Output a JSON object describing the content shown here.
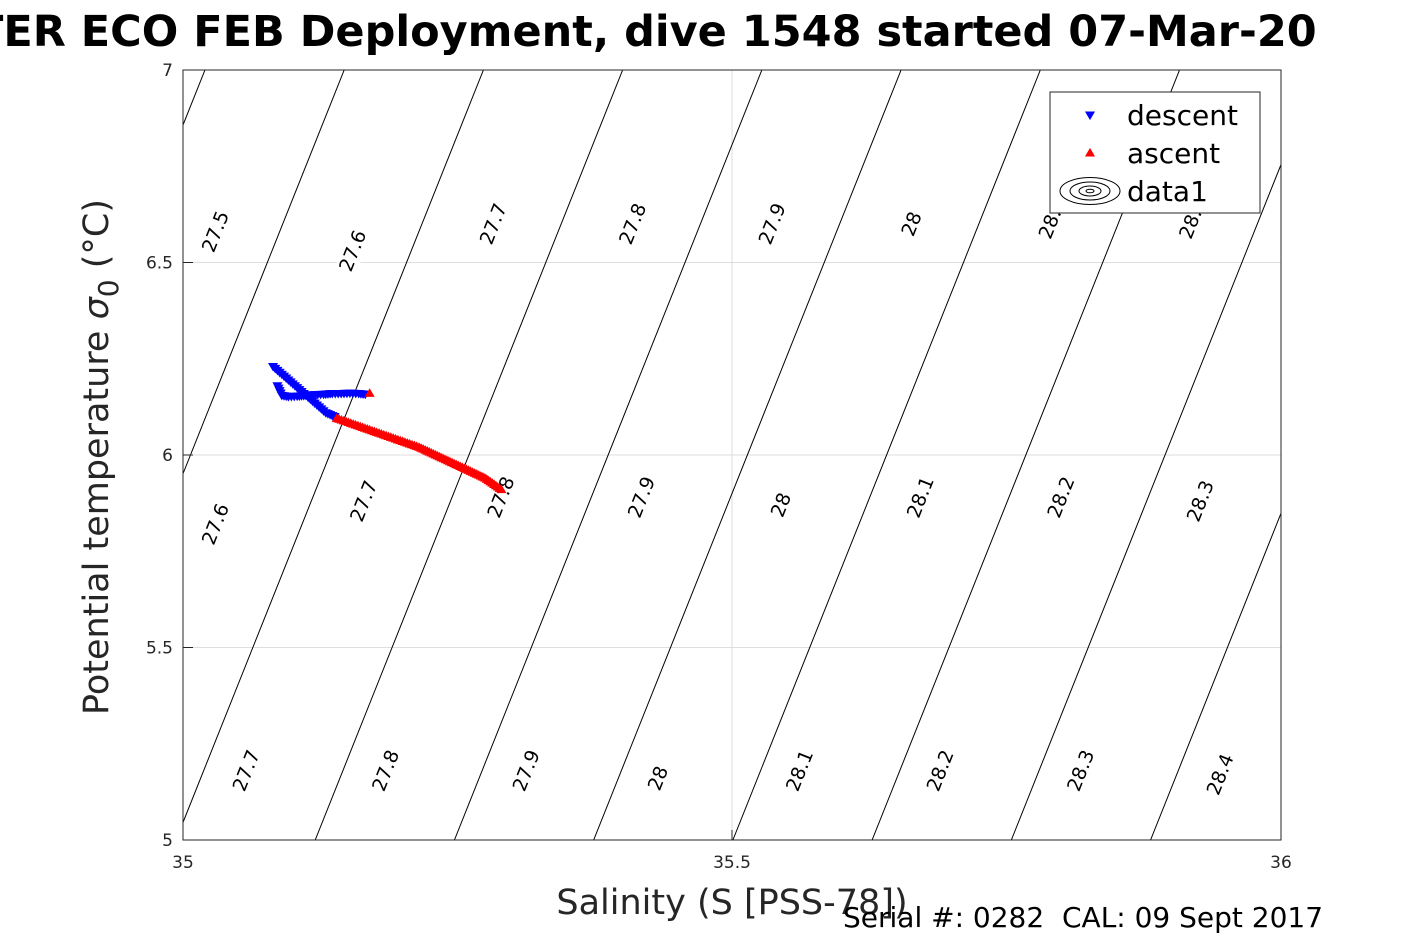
{
  "figure": {
    "title": "TER ECO FEB Deployment, dive 1548 started 07-Mar-20",
    "footer": "Serial #: 0282  CAL: 09 Sept 2017"
  },
  "colors": {
    "descent": "#0000ff",
    "ascent": "#ff0000",
    "contour": "#000000",
    "grid": "#dedede",
    "axis": "#262626"
  },
  "chart_data": {
    "type": "scatter",
    "title": "TER ECO FEB Deployment, dive 1548 started 07-Mar-20",
    "xlabel": "Salinity (S [PSS-78])",
    "ylabel": "Potential temperature σ 0 (°C)",
    "xlim": [
      35,
      36
    ],
    "ylim": [
      5,
      7
    ],
    "xticks": [
      "35",
      "35.5",
      "36"
    ],
    "yticks": [
      "5",
      "5.5",
      "6",
      "6.5",
      "7"
    ],
    "grid": true,
    "legend_position": "top-right",
    "legend": [
      "descent",
      "ascent",
      "data1"
    ],
    "series": [
      {
        "name": "descent",
        "marker": "triangle-down",
        "x": [
          35.082,
          35.086,
          35.09,
          35.094,
          35.098,
          35.102,
          35.106,
          35.11,
          35.114,
          35.118,
          35.122,
          35.126,
          35.13,
          35.134,
          35.138,
          35.086,
          35.09,
          35.096,
          35.104,
          35.112,
          35.12,
          35.128,
          35.136,
          35.144,
          35.152,
          35.16,
          35.166
        ],
        "y": [
          6.23,
          6.22,
          6.21,
          6.2,
          6.19,
          6.18,
          6.17,
          6.16,
          6.15,
          6.14,
          6.13,
          6.12,
          6.11,
          6.105,
          6.1,
          6.18,
          6.155,
          6.152,
          6.153,
          6.155,
          6.157,
          6.158,
          6.16,
          6.16,
          6.161,
          6.16,
          6.158
        ]
      },
      {
        "name": "ascent",
        "marker": "triangle-up",
        "x": [
          35.14,
          35.155,
          35.17,
          35.185,
          35.2,
          35.215,
          35.23,
          35.245,
          35.26,
          35.275,
          35.29,
          35.17
        ],
        "y": [
          6.095,
          6.08,
          6.065,
          6.05,
          6.035,
          6.02,
          6.0,
          5.98,
          5.96,
          5.94,
          5.91,
          6.16
        ]
      }
    ],
    "contours": {
      "name": "data1",
      "levels": [
        27.5,
        27.6,
        27.7,
        27.8,
        27.9,
        28.0,
        28.1,
        28.2,
        28.3,
        28.4
      ],
      "labels": [
        {
          "text": "27.5",
          "s": 35.03,
          "t": 6.58
        },
        {
          "text": "27.6",
          "s": 35.155,
          "t": 6.53
        },
        {
          "text": "27.7",
          "s": 35.283,
          "t": 6.6
        },
        {
          "text": "27.8",
          "s": 35.41,
          "t": 6.6
        },
        {
          "text": "27.9",
          "s": 35.537,
          "t": 6.6
        },
        {
          "text": "28",
          "s": 35.664,
          "t": 6.6
        },
        {
          "text": "28.",
          "s": 35.79,
          "t": 6.6
        },
        {
          "text": "28.",
          "s": 35.918,
          "t": 6.6
        },
        {
          "text": "27.6",
          "s": 35.03,
          "t": 5.82
        },
        {
          "text": "27.7",
          "s": 35.165,
          "t": 5.88
        },
        {
          "text": "27.8",
          "s": 35.29,
          "t": 5.89
        },
        {
          "text": "27.9",
          "s": 35.418,
          "t": 5.89
        },
        {
          "text": "28",
          "s": 35.545,
          "t": 5.87
        },
        {
          "text": "28.1",
          "s": 35.672,
          "t": 5.89
        },
        {
          "text": "28.2",
          "s": 35.8,
          "t": 5.89
        },
        {
          "text": "28.3",
          "s": 35.927,
          "t": 5.88
        },
        {
          "text": "27.7",
          "s": 35.058,
          "t": 5.18
        },
        {
          "text": "27.8",
          "s": 35.185,
          "t": 5.18
        },
        {
          "text": "27.9",
          "s": 35.313,
          "t": 5.18
        },
        {
          "text": "28",
          "s": 35.433,
          "t": 5.16
        },
        {
          "text": "28.1",
          "s": 35.562,
          "t": 5.18
        },
        {
          "text": "28.2",
          "s": 35.69,
          "t": 5.18
        },
        {
          "text": "28.3",
          "s": 35.818,
          "t": 5.18
        },
        {
          "text": "28.4",
          "s": 35.945,
          "t": 5.17
        }
      ]
    }
  }
}
